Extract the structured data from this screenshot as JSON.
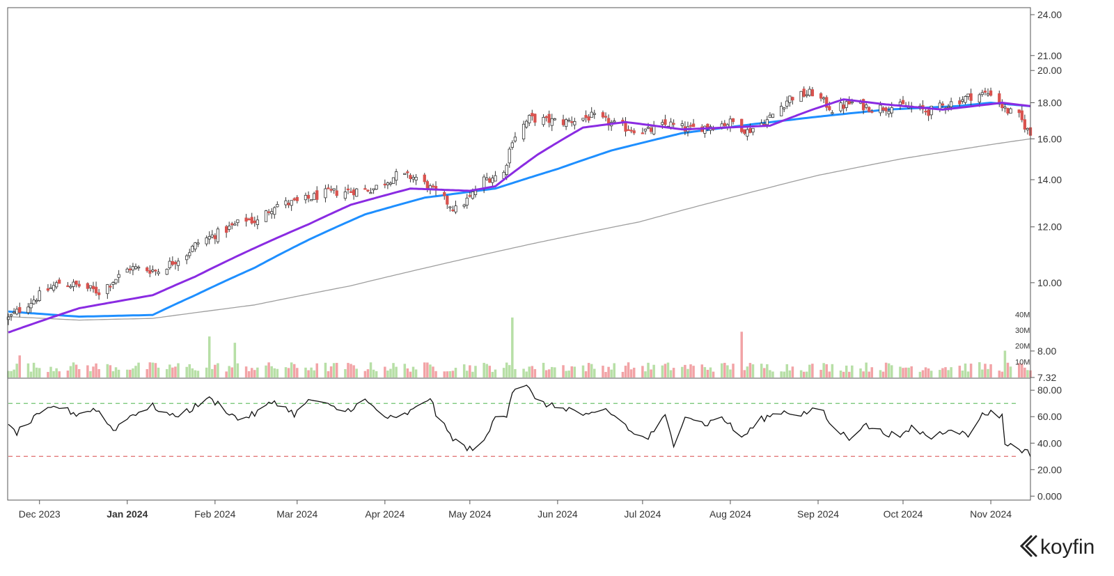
{
  "brand": {
    "name": "koyfin"
  },
  "colors": {
    "up": "#ffffff",
    "down": "#d9534f",
    "ma_fast": "#8a2be2",
    "ma_mid": "#1e8fff",
    "ma_slow": "#9e9e9e",
    "vol_up": "#b7dfa6",
    "vol_down": "#f2a3a6",
    "rsi_line": "#111111",
    "rsi_upper": "#6fc26f",
    "rsi_lower": "#e06c6c"
  },
  "chart_data": [
    {
      "type": "candlestick",
      "panel": "price",
      "scale": "log",
      "x_range": [
        "2023-11-20",
        "2024-11-15"
      ],
      "ylim": [
        7.32,
        24.5
      ],
      "y_ticks": [
        "24.00",
        "21.00",
        "20.00",
        "18.00",
        "16.00",
        "14.00",
        "12.00",
        "10.00",
        "8.00",
        "7.32"
      ],
      "x_ticks": [
        {
          "date": "2023-12-01",
          "label": "Dec 2023"
        },
        {
          "date": "2024-01-01",
          "label": "Jan 2024"
        },
        {
          "date": "2024-02-01",
          "label": "Feb 2024"
        },
        {
          "date": "2024-03-01",
          "label": "Mar 2024"
        },
        {
          "date": "2024-04-01",
          "label": "Apr 2024"
        },
        {
          "date": "2024-05-01",
          "label": "May 2024"
        },
        {
          "date": "2024-06-01",
          "label": "Jun 2024"
        },
        {
          "date": "2024-07-01",
          "label": "Jul 2024"
        },
        {
          "date": "2024-08-01",
          "label": "Aug 2024"
        },
        {
          "date": "2024-09-01",
          "label": "Sep 2024"
        },
        {
          "date": "2024-10-01",
          "label": "Oct 2024"
        },
        {
          "date": "2024-11-01",
          "label": "Nov 2024"
        }
      ],
      "close_anchors": [
        [
          "2023-11-20",
          8.9
        ],
        [
          "2023-12-01",
          9.6
        ],
        [
          "2023-12-08",
          10.0
        ],
        [
          "2023-12-15",
          9.9
        ],
        [
          "2023-12-22",
          9.7
        ],
        [
          "2024-01-02",
          10.5
        ],
        [
          "2024-01-12",
          10.4
        ],
        [
          "2024-01-22",
          11.0
        ],
        [
          "2024-01-26",
          11.4
        ],
        [
          "2024-02-05",
          11.9
        ],
        [
          "2024-02-12",
          12.3
        ],
        [
          "2024-02-16",
          12.2
        ],
        [
          "2024-02-22",
          12.9
        ],
        [
          "2024-03-01",
          13.0
        ],
        [
          "2024-03-11",
          13.4
        ],
        [
          "2024-03-20",
          13.5
        ],
        [
          "2024-03-28",
          13.6
        ],
        [
          "2024-04-05",
          14.2
        ],
        [
          "2024-04-12",
          14.1
        ],
        [
          "2024-04-19",
          13.4
        ],
        [
          "2024-04-26",
          12.7
        ],
        [
          "2024-05-01",
          13.2
        ],
        [
          "2024-05-06",
          14.0
        ],
        [
          "2024-05-13",
          14.3
        ],
        [
          "2024-05-16",
          16.0
        ],
        [
          "2024-05-22",
          17.1
        ],
        [
          "2024-06-03",
          16.9
        ],
        [
          "2024-06-13",
          17.2
        ],
        [
          "2024-06-24",
          16.6
        ],
        [
          "2024-07-03",
          16.4
        ],
        [
          "2024-07-10",
          16.8
        ],
        [
          "2024-07-17",
          16.5
        ],
        [
          "2024-07-25",
          16.7
        ],
        [
          "2024-08-02",
          16.9
        ],
        [
          "2024-08-07",
          16.4
        ],
        [
          "2024-08-14",
          17.0
        ],
        [
          "2024-08-22",
          18.3
        ],
        [
          "2024-08-30",
          18.6
        ],
        [
          "2024-09-06",
          17.6
        ],
        [
          "2024-09-13",
          18.0
        ],
        [
          "2024-09-20",
          17.7
        ],
        [
          "2024-10-01",
          17.8
        ],
        [
          "2024-10-10",
          17.5
        ],
        [
          "2024-10-18",
          18.0
        ],
        [
          "2024-10-25",
          18.4
        ],
        [
          "2024-11-01",
          18.6
        ],
        [
          "2024-11-06",
          17.6
        ],
        [
          "2024-11-11",
          17.2
        ],
        [
          "2024-11-15",
          16.2
        ]
      ],
      "series": [
        {
          "kind": "sma",
          "window": 20,
          "color_key": "ma_fast",
          "points": [
            [
              "2023-11-20",
              8.5
            ],
            [
              "2023-12-15",
              9.2
            ],
            [
              "2024-01-10",
              9.6
            ],
            [
              "2024-01-25",
              10.2
            ],
            [
              "2024-02-15",
              11.2
            ],
            [
              "2024-03-05",
              12.1
            ],
            [
              "2024-03-20",
              12.9
            ],
            [
              "2024-04-10",
              13.6
            ],
            [
              "2024-05-01",
              13.5
            ],
            [
              "2024-05-10",
              13.7
            ],
            [
              "2024-05-25",
              15.2
            ],
            [
              "2024-06-10",
              16.6
            ],
            [
              "2024-06-25",
              16.9
            ],
            [
              "2024-07-15",
              16.5
            ],
            [
              "2024-08-15",
              16.7
            ],
            [
              "2024-08-30",
              17.6
            ],
            [
              "2024-09-10",
              18.2
            ],
            [
              "2024-09-25",
              17.9
            ],
            [
              "2024-10-15",
              17.6
            ],
            [
              "2024-10-31",
              17.9
            ],
            [
              "2024-11-05",
              18.0
            ],
            [
              "2024-11-15",
              17.8
            ]
          ]
        },
        {
          "kind": "sma",
          "window": 50,
          "color_key": "ma_mid",
          "points": [
            [
              "2023-11-20",
              9.1
            ],
            [
              "2023-12-15",
              8.95
            ],
            [
              "2024-01-10",
              9.0
            ],
            [
              "2024-01-25",
              9.6
            ],
            [
              "2024-02-15",
              10.5
            ],
            [
              "2024-03-05",
              11.5
            ],
            [
              "2024-03-25",
              12.5
            ],
            [
              "2024-04-15",
              13.2
            ],
            [
              "2024-05-10",
              13.6
            ],
            [
              "2024-06-01",
              14.5
            ],
            [
              "2024-06-20",
              15.4
            ],
            [
              "2024-07-15",
              16.3
            ],
            [
              "2024-08-10",
              16.8
            ],
            [
              "2024-09-01",
              17.2
            ],
            [
              "2024-09-25",
              17.6
            ],
            [
              "2024-10-20",
              17.8
            ],
            [
              "2024-11-01",
              18.0
            ],
            [
              "2024-11-15",
              17.8
            ]
          ]
        },
        {
          "kind": "sma",
          "window": 200,
          "color_key": "ma_slow",
          "points": [
            [
              "2023-11-20",
              8.95
            ],
            [
              "2023-12-15",
              8.85
            ],
            [
              "2024-01-10",
              8.9
            ],
            [
              "2024-02-15",
              9.3
            ],
            [
              "2024-03-20",
              9.9
            ],
            [
              "2024-04-20",
              10.6
            ],
            [
              "2024-05-25",
              11.4
            ],
            [
              "2024-06-30",
              12.2
            ],
            [
              "2024-08-01",
              13.2
            ],
            [
              "2024-09-01",
              14.2
            ],
            [
              "2024-10-01",
              15.0
            ],
            [
              "2024-11-01",
              15.7
            ],
            [
              "2024-11-15",
              16.0
            ]
          ]
        }
      ]
    },
    {
      "type": "bar",
      "panel": "volume",
      "unit": "shares",
      "ylim": [
        0,
        45000000
      ],
      "y_ticks": [
        "40M",
        "30M",
        "20M",
        "10M"
      ],
      "spikes": [
        [
          "2023-11-24",
          14000000
        ],
        [
          "2024-01-30",
          26000000
        ],
        [
          "2024-02-08",
          22000000
        ],
        [
          "2024-05-16",
          38000000
        ],
        [
          "2024-08-05",
          29000000
        ],
        [
          "2024-11-06",
          17000000
        ]
      ],
      "base_level": 7000000
    },
    {
      "type": "line",
      "panel": "rsi",
      "ylim": [
        -3,
        88
      ],
      "y_ticks": [
        "80.00",
        "60.00",
        "40.00",
        "20.00",
        "0.000"
      ],
      "upper_band": 70,
      "lower_band": 30,
      "points": [
        [
          "2023-11-20",
          52
        ],
        [
          "2023-11-23",
          48
        ],
        [
          "2023-11-30",
          60
        ],
        [
          "2023-12-07",
          68
        ],
        [
          "2023-12-14",
          62
        ],
        [
          "2023-12-21",
          66
        ],
        [
          "2023-12-27",
          50
        ],
        [
          "2024-01-03",
          62
        ],
        [
          "2024-01-10",
          68
        ],
        [
          "2024-01-17",
          60
        ],
        [
          "2024-01-24",
          66
        ],
        [
          "2024-01-29",
          74
        ],
        [
          "2024-02-02",
          70
        ],
        [
          "2024-02-09",
          58
        ],
        [
          "2024-02-15",
          62
        ],
        [
          "2024-02-22",
          72
        ],
        [
          "2024-02-29",
          62
        ],
        [
          "2024-03-06",
          73
        ],
        [
          "2024-03-12",
          68
        ],
        [
          "2024-03-18",
          64
        ],
        [
          "2024-03-25",
          72
        ],
        [
          "2024-04-01",
          60
        ],
        [
          "2024-04-05",
          58
        ],
        [
          "2024-04-12",
          66
        ],
        [
          "2024-04-17",
          75
        ],
        [
          "2024-04-19",
          62
        ],
        [
          "2024-04-24",
          46
        ],
        [
          "2024-04-30",
          35
        ],
        [
          "2024-05-06",
          40
        ],
        [
          "2024-05-10",
          60
        ],
        [
          "2024-05-14",
          62
        ],
        [
          "2024-05-16",
          80
        ],
        [
          "2024-05-21",
          85
        ],
        [
          "2024-05-24",
          72
        ],
        [
          "2024-05-30",
          68
        ],
        [
          "2024-06-05",
          66
        ],
        [
          "2024-06-12",
          60
        ],
        [
          "2024-06-18",
          65
        ],
        [
          "2024-06-24",
          56
        ],
        [
          "2024-06-28",
          46
        ],
        [
          "2024-07-03",
          44
        ],
        [
          "2024-07-09",
          60
        ],
        [
          "2024-07-12",
          38
        ],
        [
          "2024-07-16",
          62
        ],
        [
          "2024-07-23",
          54
        ],
        [
          "2024-07-29",
          60
        ],
        [
          "2024-08-05",
          44
        ],
        [
          "2024-08-12",
          58
        ],
        [
          "2024-08-19",
          64
        ],
        [
          "2024-08-26",
          62
        ],
        [
          "2024-09-02",
          66
        ],
        [
          "2024-09-06",
          52
        ],
        [
          "2024-09-12",
          44
        ],
        [
          "2024-09-17",
          54
        ],
        [
          "2024-09-24",
          48
        ],
        [
          "2024-10-01",
          45
        ],
        [
          "2024-10-04",
          52
        ],
        [
          "2024-10-11",
          44
        ],
        [
          "2024-10-18",
          52
        ],
        [
          "2024-10-24",
          45
        ],
        [
          "2024-10-28",
          60
        ],
        [
          "2024-11-01",
          64
        ],
        [
          "2024-11-05",
          60
        ],
        [
          "2024-11-06",
          40
        ],
        [
          "2024-11-11",
          36
        ],
        [
          "2024-11-15",
          32
        ]
      ]
    }
  ]
}
